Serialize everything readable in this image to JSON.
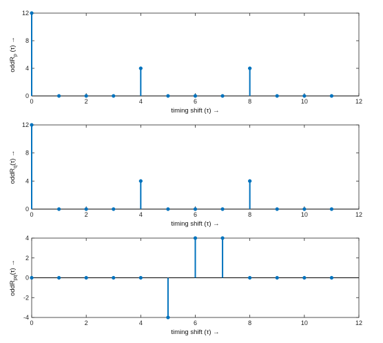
{
  "stem_color": "#0072bd",
  "chart_data": [
    {
      "type": "stem",
      "xlabel": "timing shift (τ) →",
      "ylabel_main": "oddR",
      "ylabel_sub": "p",
      "ylabel_tail": " (τ) →",
      "xlim": [
        0,
        12
      ],
      "ylim": [
        0,
        12
      ],
      "x_ticks": [
        "0",
        "2",
        "4",
        "6",
        "8",
        "10",
        "12"
      ],
      "y_ticks": [
        "0",
        "4",
        "8",
        "12"
      ],
      "x": [
        0,
        1,
        2,
        3,
        4,
        5,
        6,
        7,
        8,
        9,
        10,
        11
      ],
      "values": [
        12,
        0,
        0,
        0,
        4,
        0,
        0,
        0,
        4,
        0,
        0,
        0
      ]
    },
    {
      "type": "stem",
      "xlabel": "timing shift (τ) →",
      "ylabel_main": "oddR",
      "ylabel_sub": "q",
      "ylabel_tail": "(τ) →",
      "xlim": [
        0,
        12
      ],
      "ylim": [
        0,
        12
      ],
      "x_ticks": [
        "0",
        "2",
        "4",
        "6",
        "8",
        "10",
        "12"
      ],
      "y_ticks": [
        "0",
        "4",
        "8",
        "12"
      ],
      "x": [
        0,
        1,
        2,
        3,
        4,
        5,
        6,
        7,
        8,
        9,
        10,
        11
      ],
      "values": [
        12,
        0,
        0,
        0,
        4,
        0,
        0,
        0,
        4,
        0,
        0,
        0
      ]
    },
    {
      "type": "stem",
      "xlabel": "timing shift (τ) →",
      "ylabel_main": "oddR",
      "ylabel_sub": "pq",
      "ylabel_tail": "(τ) →",
      "xlim": [
        0,
        12
      ],
      "ylim": [
        -4,
        4
      ],
      "x_ticks": [
        "0",
        "2",
        "4",
        "6",
        "8",
        "10",
        "12"
      ],
      "y_ticks": [
        "-4",
        "-2",
        "0",
        "2",
        "4"
      ],
      "x": [
        0,
        1,
        2,
        3,
        4,
        5,
        6,
        7,
        8,
        9,
        10,
        11
      ],
      "values": [
        0,
        0,
        0,
        0,
        0,
        -4,
        4,
        4,
        0,
        0,
        0,
        0
      ]
    }
  ]
}
